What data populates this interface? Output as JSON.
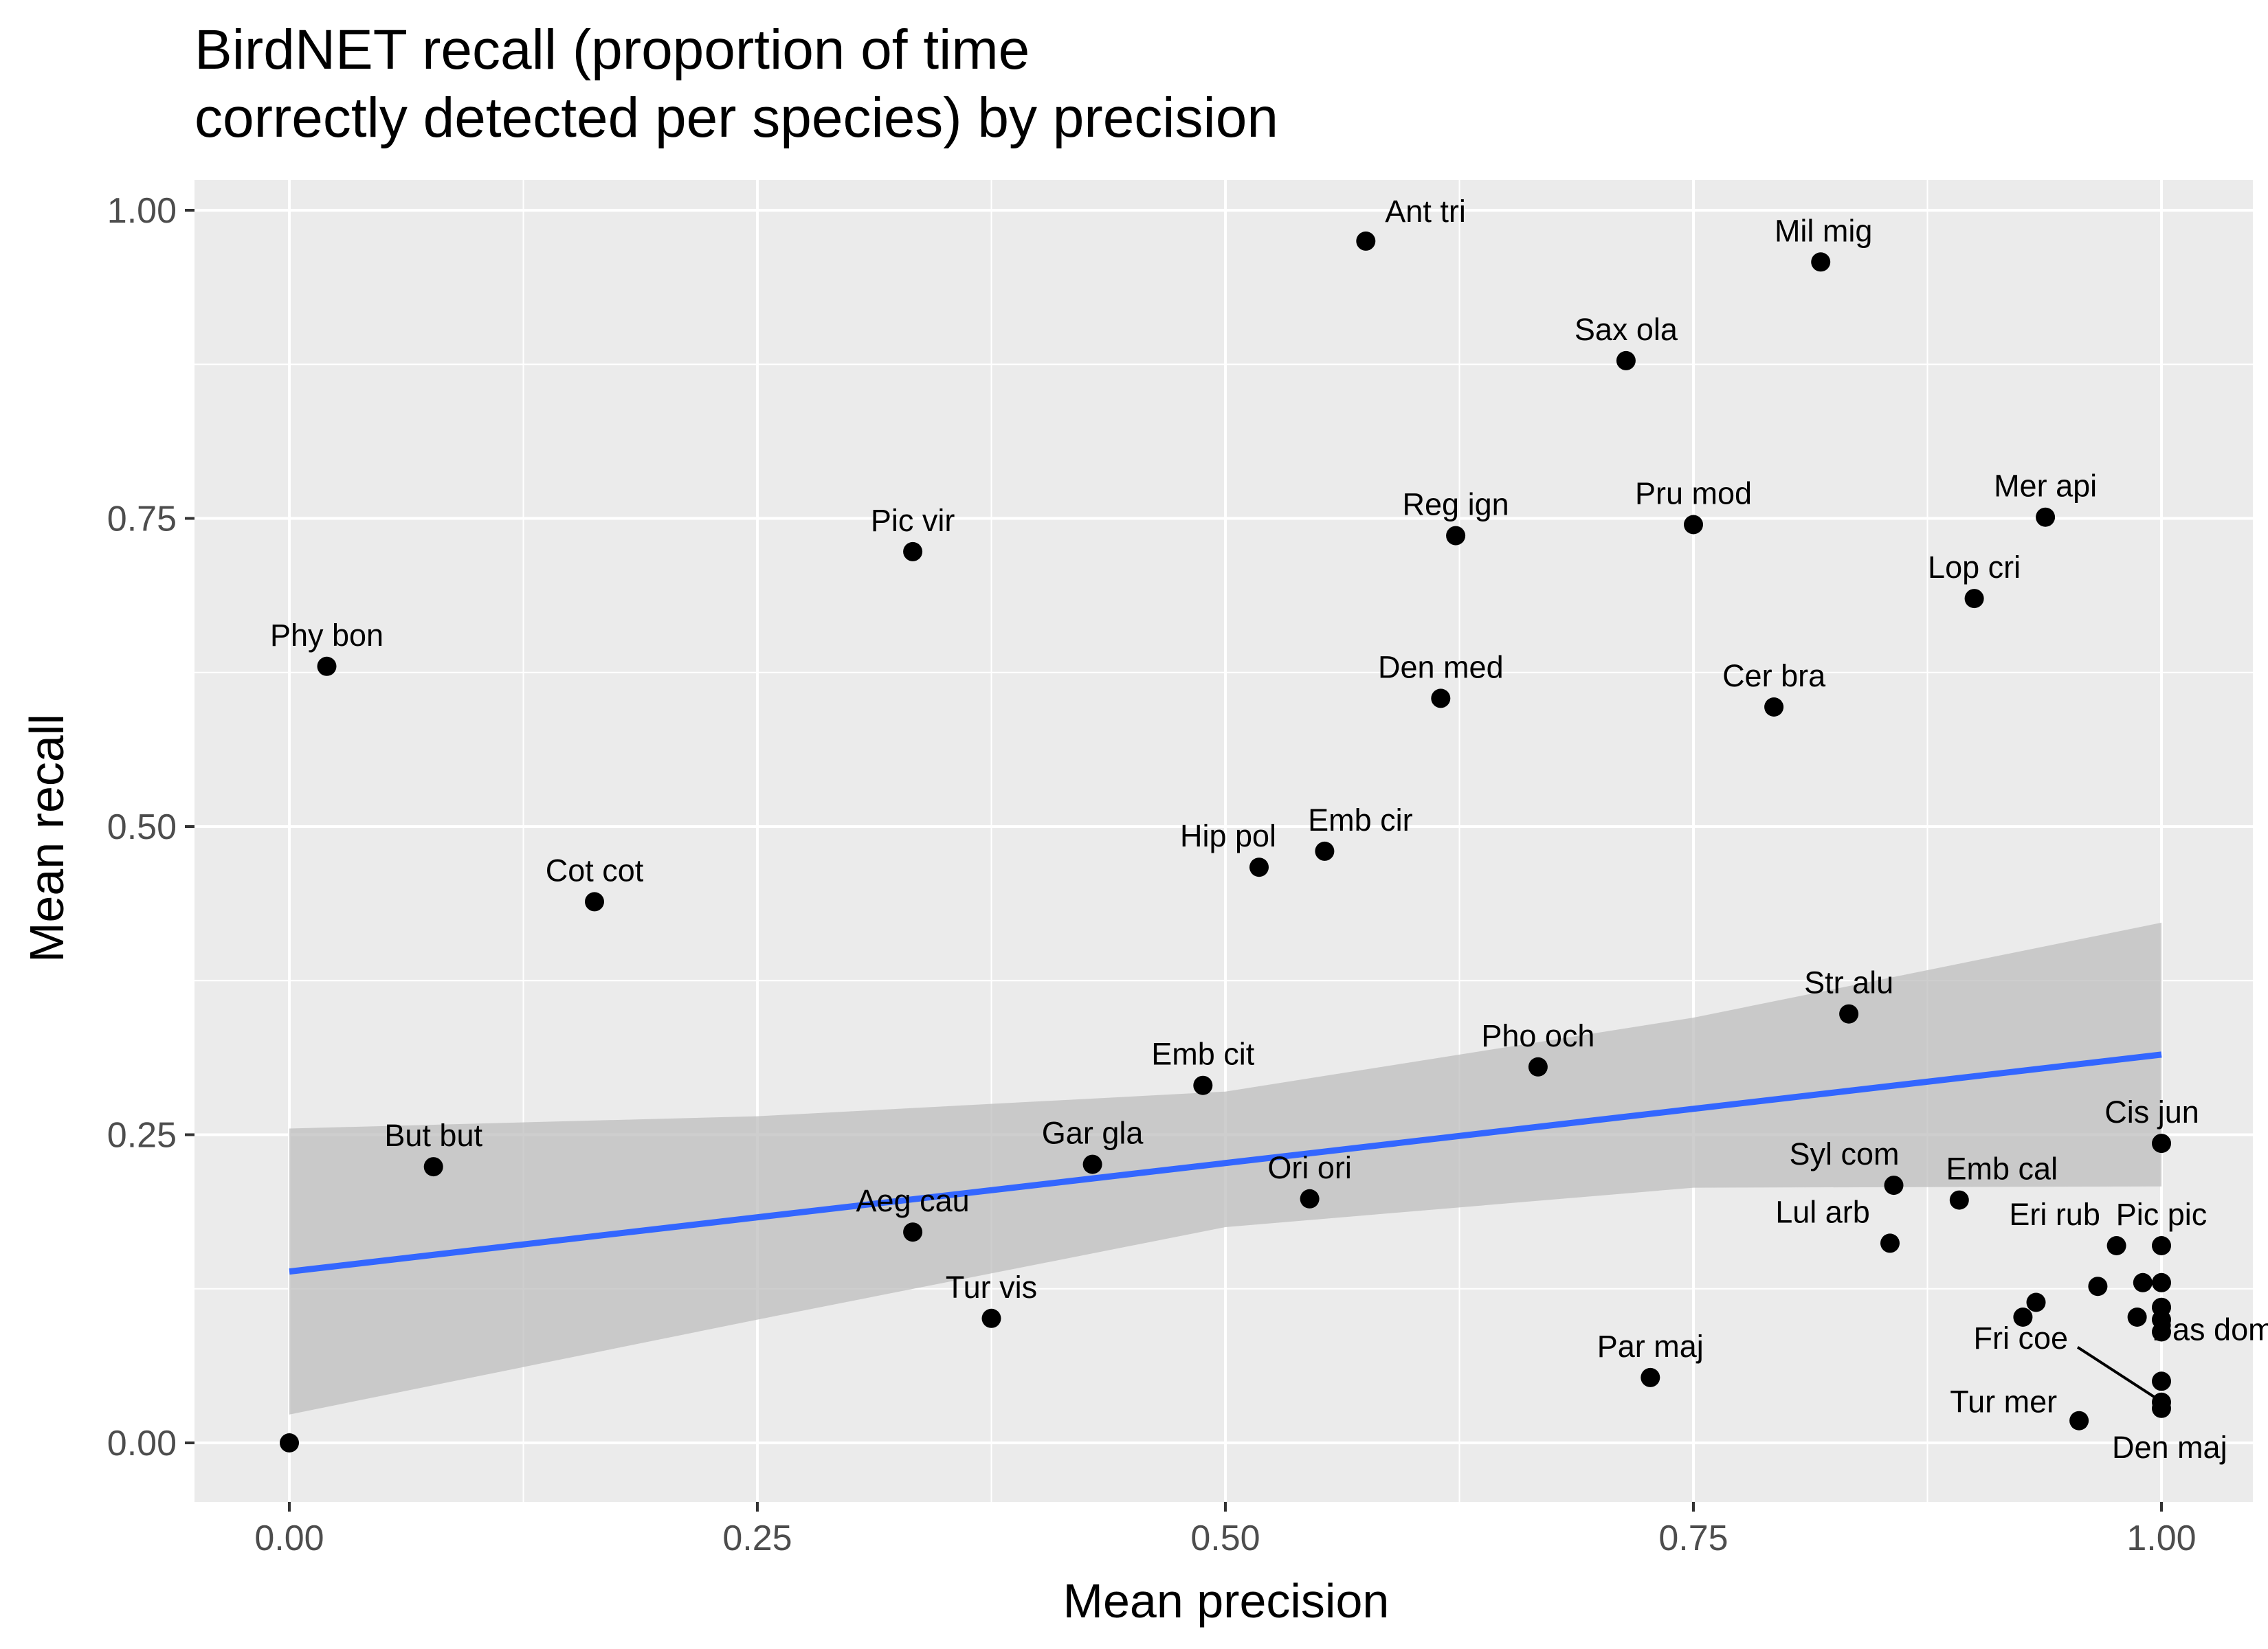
{
  "chart_data": {
    "type": "scatter",
    "title": "BirdNET recall (proportion of time\ncorrectly detected per species) by precision",
    "xlabel": "Mean precision",
    "ylabel": "Mean recall",
    "xlim": [
      -0.05,
      1.05
    ],
    "ylim": [
      -0.048,
      1.024
    ],
    "x_ticks": [
      0.0,
      0.25,
      0.5,
      0.75,
      1.0
    ],
    "x_tick_labels": [
      "0.00",
      "0.25",
      "0.50",
      "0.75",
      "1.00"
    ],
    "y_ticks": [
      0.0,
      0.25,
      0.5,
      0.75,
      1.0
    ],
    "y_tick_labels": [
      "0.00",
      "0.25",
      "0.50",
      "0.75",
      "1.00"
    ],
    "grid": true,
    "legend": "none",
    "colors": {
      "panel": "#ebebeb",
      "grid": "#ffffff",
      "point": "#000000",
      "fit_line": "#3366ff",
      "ribbon": "#bdbdbd"
    },
    "points": [
      {
        "label": "Ant tri",
        "x": 0.575,
        "y": 0.975
      },
      {
        "label": "Mil mig",
        "x": 0.818,
        "y": 0.958
      },
      {
        "label": "Sax ola",
        "x": 0.714,
        "y": 0.878
      },
      {
        "label": "Mer api",
        "x": 0.938,
        "y": 0.751
      },
      {
        "label": "Pru mod",
        "x": 0.75,
        "y": 0.745
      },
      {
        "label": "Reg ign",
        "x": 0.623,
        "y": 0.736
      },
      {
        "label": "Pic vir",
        "x": 0.333,
        "y": 0.723
      },
      {
        "label": "Lop cri",
        "x": 0.9,
        "y": 0.685
      },
      {
        "label": "Phy bon",
        "x": 0.02,
        "y": 0.63
      },
      {
        "label": "Den med",
        "x": 0.615,
        "y": 0.604
      },
      {
        "label": "Cer bra",
        "x": 0.793,
        "y": 0.597
      },
      {
        "label": "Emb cir",
        "x": 0.553,
        "y": 0.48
      },
      {
        "label": "Hip pol",
        "x": 0.518,
        "y": 0.467
      },
      {
        "label": "Cot cot",
        "x": 0.163,
        "y": 0.439
      },
      {
        "label": "Str alu",
        "x": 0.833,
        "y": 0.348
      },
      {
        "label": "Pho och",
        "x": 0.667,
        "y": 0.305
      },
      {
        "label": "Emb cit",
        "x": 0.488,
        "y": 0.29
      },
      {
        "label": "Cis jun",
        "x": 1.0,
        "y": 0.243
      },
      {
        "label": "But but",
        "x": 0.077,
        "y": 0.224
      },
      {
        "label": "Gar gla",
        "x": 0.429,
        "y": 0.226
      },
      {
        "label": "Syl com",
        "x": 0.857,
        "y": 0.209
      },
      {
        "label": "Ori ori",
        "x": 0.545,
        "y": 0.198
      },
      {
        "label": "Emb cal",
        "x": 0.892,
        "y": 0.197
      },
      {
        "label": "Aeg cau",
        "x": 0.333,
        "y": 0.171
      },
      {
        "label": "Lul arb",
        "x": 0.855,
        "y": 0.162
      },
      {
        "label": "Eri rub",
        "x": 0.976,
        "y": 0.16
      },
      {
        "label": "Pic pic",
        "x": 1.0,
        "y": 0.16
      },
      {
        "label": "Tur vis",
        "x": 0.375,
        "y": 0.101
      },
      {
        "label": "Par maj",
        "x": 0.727,
        "y": 0.053
      },
      {
        "label": "Fri coe",
        "x": 1.0,
        "y": 0.033
      },
      {
        "label": "Pas dom",
        "x": 1.0,
        "y": 0.05
      },
      {
        "label": "Tur mer",
        "x": 0.956,
        "y": 0.018
      },
      {
        "label": "Den maj",
        "x": 1.0,
        "y": 0.028
      },
      {
        "label": "",
        "x": 0.0,
        "y": 0.0
      },
      {
        "label": "",
        "x": 0.966,
        "y": 0.127
      },
      {
        "label": "",
        "x": 0.99,
        "y": 0.13
      },
      {
        "label": "",
        "x": 1.0,
        "y": 0.13
      },
      {
        "label": "",
        "x": 0.933,
        "y": 0.114
      },
      {
        "label": "",
        "x": 0.926,
        "y": 0.102
      },
      {
        "label": "",
        "x": 0.987,
        "y": 0.102
      },
      {
        "label": "",
        "x": 1.0,
        "y": 0.11
      },
      {
        "label": "",
        "x": 1.0,
        "y": 0.1
      },
      {
        "label": "",
        "x": 1.0,
        "y": 0.09
      }
    ],
    "fit": {
      "method": "linear",
      "x": [
        0.0,
        1.0
      ],
      "y": [
        0.139,
        0.315
      ],
      "ribbon": {
        "x": [
          0.0,
          0.25,
          0.5,
          0.75,
          1.0
        ],
        "lower": [
          0.023,
          0.1,
          0.175,
          0.207,
          0.208
        ],
        "upper": [
          0.255,
          0.265,
          0.285,
          0.345,
          0.422
        ]
      }
    }
  }
}
